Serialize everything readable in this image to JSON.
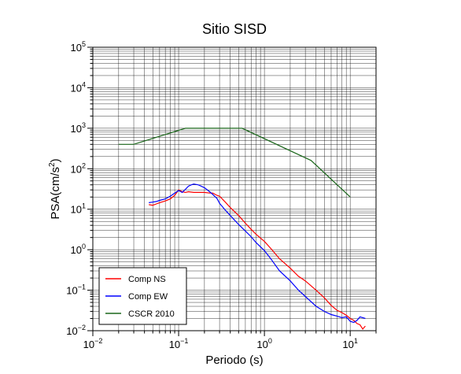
{
  "chart_data": {
    "type": "line",
    "title": "Sitio SISD",
    "xlabel": "Periodo (s)",
    "ylabel_main": "PSA(cm/s",
    "ylabel_sup": "2",
    "ylabel_close": ")",
    "x_scale": "log",
    "y_scale": "log",
    "xlim": [
      0.01,
      20
    ],
    "ylim": [
      0.01,
      100000
    ],
    "x_ticks": [
      {
        "value": 0.01,
        "base": "10",
        "exp": "−2"
      },
      {
        "value": 0.1,
        "base": "10",
        "exp": "−1"
      },
      {
        "value": 1,
        "base": "10",
        "exp": "0"
      },
      {
        "value": 10,
        "base": "10",
        "exp": "1"
      }
    ],
    "y_ticks": [
      {
        "value": 0.01,
        "base": "10",
        "exp": "−2"
      },
      {
        "value": 0.1,
        "base": "10",
        "exp": "−1"
      },
      {
        "value": 1,
        "base": "10",
        "exp": "0"
      },
      {
        "value": 10,
        "base": "10",
        "exp": "1"
      },
      {
        "value": 100,
        "base": "10",
        "exp": "2"
      },
      {
        "value": 1000,
        "base": "10",
        "exp": "3"
      },
      {
        "value": 10000,
        "base": "10",
        "exp": "4"
      },
      {
        "value": 100000,
        "base": "10",
        "exp": "5"
      }
    ],
    "grid": true,
    "legend_position": "bottom-left",
    "series": [
      {
        "name": "Comp NS",
        "color": "#ff0000",
        "x": [
          0.045,
          0.05,
          0.055,
          0.06,
          0.07,
          0.08,
          0.09,
          0.1,
          0.11,
          0.12,
          0.13,
          0.15,
          0.17,
          0.2,
          0.23,
          0.25,
          0.28,
          0.3,
          0.35,
          0.4,
          0.5,
          0.6,
          0.7,
          0.8,
          1.0,
          1.2,
          1.5,
          2.0,
          2.5,
          3.0,
          4.0,
          5.0,
          6.0,
          7.0,
          8.0,
          9.0,
          10.0,
          11.0,
          12.0,
          13.0,
          14.0,
          15.0
        ],
        "y": [
          13,
          12.5,
          13.5,
          14.5,
          16,
          18,
          22,
          30,
          27,
          26,
          27,
          26,
          26,
          26,
          25,
          25,
          22,
          21,
          15,
          11,
          7,
          4.5,
          3.2,
          2.4,
          1.6,
          1.05,
          0.6,
          0.35,
          0.22,
          0.17,
          0.1,
          0.065,
          0.042,
          0.032,
          0.028,
          0.024,
          0.02,
          0.018,
          0.015,
          0.014,
          0.011,
          0.013
        ]
      },
      {
        "name": "Comp EW",
        "color": "#0000ff",
        "x": [
          0.045,
          0.05,
          0.055,
          0.06,
          0.07,
          0.08,
          0.09,
          0.1,
          0.11,
          0.12,
          0.13,
          0.14,
          0.15,
          0.17,
          0.2,
          0.23,
          0.25,
          0.28,
          0.3,
          0.35,
          0.4,
          0.5,
          0.6,
          0.7,
          0.8,
          1.0,
          1.2,
          1.5,
          2.0,
          2.5,
          3.0,
          4.0,
          5.0,
          6.0,
          7.0,
          8.0,
          9.0,
          10.0,
          11.0,
          12.0,
          13.0,
          14.0,
          15.0
        ],
        "y": [
          14.5,
          15,
          15.5,
          16.5,
          18,
          21,
          25,
          29,
          26,
          31,
          37,
          40,
          42,
          40,
          34,
          27,
          23,
          18.5,
          14,
          9.5,
          7,
          4.2,
          2.9,
          2.1,
          1.5,
          0.95,
          0.58,
          0.3,
          0.17,
          0.1,
          0.07,
          0.04,
          0.03,
          0.025,
          0.023,
          0.021,
          0.022,
          0.017,
          0.016,
          0.018,
          0.022,
          0.021,
          0.02
        ]
      },
      {
        "name": "CSCR 2010",
        "color": "#1a661a",
        "x": [
          0.02,
          0.03,
          0.12,
          0.55,
          3.5,
          10
        ],
        "y": [
          400,
          400,
          1000,
          1000,
          160,
          20
        ]
      }
    ]
  }
}
